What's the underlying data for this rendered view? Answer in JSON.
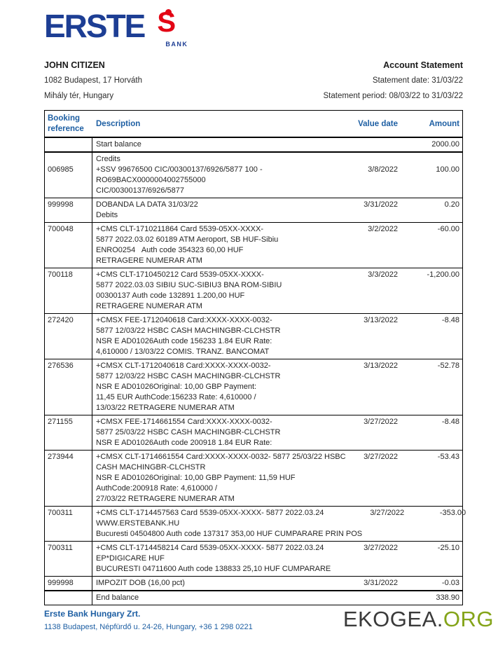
{
  "logo": {
    "brand": "ERSTE",
    "bank_label": "BANK",
    "brand_blue": "#1d3e94",
    "accent_red": "#e30615"
  },
  "customer": {
    "name": "JOHN CITIZEN",
    "address_line1": "1082 Budapest, 17 Horváth",
    "address_line2": "Mihály tér, Hungary"
  },
  "statement_info": {
    "title": "Account Statement",
    "date_line": "Statement date: 31/03/22",
    "period_line": "Statement period: 08/03/22 to 31/03/22"
  },
  "table": {
    "header_blue": "#1e5fa3",
    "headers": {
      "booking_line1": "Booking",
      "booking_line2": "reference",
      "description": "Description",
      "value_date": "Value date",
      "amount": "Amount"
    },
    "rows": [
      {
        "kind": "balance",
        "ref": "",
        "lines": [
          "Start balance"
        ],
        "date": "",
        "amount": "2000.00"
      },
      {
        "kind": "txn",
        "ref": "006985",
        "pre": "Credits",
        "lines": [
          "+SSV 99676500 CIC/00300137/6926/5877 100 -",
          "RO69BACX0000004002755000",
          "CIC/00300137/6926/5877"
        ],
        "date": "3/8/2022",
        "amount": "100.00"
      },
      {
        "kind": "txn",
        "ref": "999998",
        "lines": [
          "DOBANDA LA DATA 31/03/22"
        ],
        "post": "Debits",
        "date": "3/31/2022",
        "amount": "0.20"
      },
      {
        "kind": "txn",
        "ref": "700048",
        "lines": [
          "+CMS CLT-1710211864 Card 5539-05XX-XXXX-",
          "5877 2022.03.02 60189 ATM Aeroport, SB HUF-Sibiu",
          "ENRO0254   Auth code 354323 60,00 HUF",
          "RETRAGERE NUMERAR ATM"
        ],
        "date": "3/2/2022",
        "amount": "-60.00"
      },
      {
        "kind": "txn",
        "ref": "700118",
        "lines": [
          "+CMS CLT-1710450212 Card 5539-05XX-XXXX-",
          "5877 2022.03.03 SIBIU SUC-SIBIU3 BNA ROM-SIBIU",
          "00300137 Auth code 132891 1.200,00 HUF",
          "RETRAGERE NUMERAR ATM"
        ],
        "date": "3/3/2022",
        "amount": "-1,200.00"
      },
      {
        "kind": "txn",
        "ref": "272420",
        "lines": [
          "+CMSX FEE-1712040618 Card:XXXX-XXXX-0032-",
          "5877 12/03/22 HSBC CASH MACHINGBR-CLCHSTR",
          "NSR E AD01026Auth code 156233 1.84 EUR Rate:",
          "4,610000 / 13/03/22 COMIS. TRANZ. BANCOMAT"
        ],
        "date": "3/13/2022",
        "amount": "-8.48"
      },
      {
        "kind": "txn",
        "ref": "276536",
        "lines": [
          "+CMSX CLT-1712040618 Card:XXXX-XXXX-0032-",
          "5877 12/03/22 HSBC CASH MACHINGBR-CLCHSTR",
          "NSR E AD01026Original: 10,00 GBP Payment:",
          "11,45 EUR AuthCode:156233 Rate: 4,610000 /",
          "13/03/22 RETRAGERE NUMERAR ATM"
        ],
        "date": "3/13/2022",
        "amount": "-52.78"
      },
      {
        "kind": "txn",
        "ref": "271155",
        "lines": [
          "+CMSX FEE-1714661554 Card:XXXX-XXXX-0032-",
          "5877 25/03/22 HSBC CASH MACHINGBR-CLCHSTR",
          "NSR E AD01026Auth code 200918 1.84 EUR Rate:"
        ],
        "date": "3/27/2022",
        "amount": "-8.48"
      },
      {
        "kind": "txn",
        "ref": "273944",
        "lines": [
          "+CMSX CLT-1714661554 Card:XXXX-XXXX-0032- 5877 25/03/22 HSBC",
          "CASH MACHINGBR-CLCHSTR",
          "NSR E AD01026Original: 10,00 GBP Payment: 11,59 HUF",
          "AuthCode:200918 Rate: 4,610000 /",
          "27/03/22 RETRAGERE NUMERAR ATM"
        ],
        "date": "3/27/2022",
        "amount": "-53.43"
      },
      {
        "kind": "txn",
        "ref": "700311",
        "lines": [
          "+CMS CLT-1714457563 Card 5539-05XX-XXXX- 5877 2022.03.24",
          "WWW.ERSTEBANK.HU",
          "Bucuresti 04504800 Auth code 137317 353,00 HUF CUMPARARE PRIN POS"
        ],
        "date": "3/27/2022",
        "amount": "-353.00"
      },
      {
        "kind": "txn",
        "ref": "700311",
        "lines": [
          "+CMS CLT-1714458214 Card 5539-05XX-XXXX- 5877 2022.03.24",
          "EP*DIGICARE HUF",
          "BUCURESTI 04711600 Auth code 138833 25,10 HUF CUMPARARE"
        ],
        "date": "3/27/2022",
        "amount": "-25.10"
      },
      {
        "kind": "txn",
        "ref": "999998",
        "lines": [
          "IMPOZIT DOB (16,00 pct)"
        ],
        "date": "3/31/2022",
        "amount": "-0.03"
      },
      {
        "kind": "balance",
        "ref": "",
        "lines": [
          "End balance"
        ],
        "date": "",
        "amount": "338.90"
      }
    ]
  },
  "footer": {
    "bank_name": "Erste Bank Hungary Zrt.",
    "bank_address": "1138 Budapest, Népfürdő u. 24-26, Hungary, +36 1 298 0221"
  },
  "watermark": {
    "text_dark": "EKOGEA.",
    "text_green": "ORG",
    "green": "#84a419"
  }
}
